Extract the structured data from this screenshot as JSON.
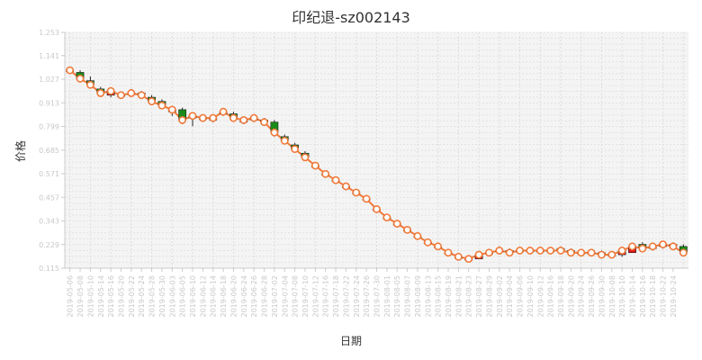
{
  "chart_data": {
    "type": "candlestick+line",
    "title": "印纪退-sz002143",
    "xlabel": "日期",
    "ylabel": "价格",
    "ylim": [
      0.115,
      1.253
    ],
    "y_ticks": [
      0.115,
      0.229,
      0.343,
      0.457,
      0.571,
      0.685,
      0.799,
      0.913,
      1.027,
      1.141,
      1.253
    ],
    "grid": true,
    "colors": {
      "up": "#e0161b",
      "down": "#1a8a1a",
      "line": "#f07a3a",
      "marker_fill": "#ffffff",
      "plot_bg": "#f4f4f4"
    },
    "x_ticks": [
      "2019-05-06",
      "2019-05-08",
      "2019-05-10",
      "2019-05-14",
      "2019-05-16",
      "2019-05-20",
      "2019-05-22",
      "2019-05-24",
      "2019-05-28",
      "2019-05-30",
      "2019-06-03",
      "2019-06-05",
      "2019-06-10",
      "2019-06-12",
      "2019-06-14",
      "2019-06-18",
      "2019-06-20",
      "2019-06-24",
      "2019-06-26",
      "2019-06-28",
      "2019-07-02",
      "2019-07-04",
      "2019-07-08",
      "2019-07-10",
      "2019-07-12",
      "2019-07-16",
      "2019-07-18",
      "2019-07-22",
      "2019-07-24",
      "2019-07-26",
      "2019-07-30",
      "2019-08-01",
      "2019-08-05",
      "2019-08-07",
      "2019-08-09",
      "2019-08-13",
      "2019-08-15",
      "2019-08-19",
      "2019-08-21",
      "2019-08-23",
      "2019-08-27",
      "2019-08-29",
      "2019-09-02",
      "2019-09-04",
      "2019-09-06",
      "2019-09-10",
      "2019-09-12",
      "2019-09-16",
      "2019-09-18",
      "2019-09-20",
      "2019-09-24",
      "2019-09-26",
      "2019-09-30",
      "2019-10-08",
      "2019-10-10",
      "2019-10-14",
      "2019-10-16",
      "2019-10-18",
      "2019-10-22",
      "2019-10-24"
    ],
    "candles": [
      {
        "o": 1.07,
        "h": 1.08,
        "l": 1.06,
        "c": 1.07
      },
      {
        "o": 1.06,
        "h": 1.07,
        "l": 1.02,
        "c": 1.03
      },
      {
        "o": 1.02,
        "h": 1.04,
        "l": 0.99,
        "c": 1.0
      },
      {
        "o": 0.98,
        "h": 0.99,
        "l": 0.95,
        "c": 0.96
      },
      {
        "o": 0.95,
        "h": 0.97,
        "l": 0.94,
        "c": 0.97
      },
      {
        "o": 0.95,
        "h": 0.96,
        "l": 0.94,
        "c": 0.95
      },
      {
        "o": 0.96,
        "h": 0.98,
        "l": 0.95,
        "c": 0.96
      },
      {
        "o": 0.96,
        "h": 0.97,
        "l": 0.94,
        "c": 0.95
      },
      {
        "o": 0.94,
        "h": 0.95,
        "l": 0.91,
        "c": 0.92
      },
      {
        "o": 0.92,
        "h": 0.93,
        "l": 0.89,
        "c": 0.9
      },
      {
        "o": 0.87,
        "h": 0.89,
        "l": 0.85,
        "c": 0.88
      },
      {
        "o": 0.88,
        "h": 0.89,
        "l": 0.81,
        "c": 0.83
      },
      {
        "o": 0.84,
        "h": 0.86,
        "l": 0.8,
        "c": 0.85
      },
      {
        "o": 0.84,
        "h": 0.85,
        "l": 0.83,
        "c": 0.84
      },
      {
        "o": 0.83,
        "h": 0.84,
        "l": 0.82,
        "c": 0.84
      },
      {
        "o": 0.86,
        "h": 0.87,
        "l": 0.85,
        "c": 0.87
      },
      {
        "o": 0.86,
        "h": 0.87,
        "l": 0.84,
        "c": 0.84
      },
      {
        "o": 0.82,
        "h": 0.83,
        "l": 0.81,
        "c": 0.83
      },
      {
        "o": 0.83,
        "h": 0.84,
        "l": 0.82,
        "c": 0.84
      },
      {
        "o": 0.83,
        "h": 0.84,
        "l": 0.81,
        "c": 0.82
      },
      {
        "o": 0.82,
        "h": 0.83,
        "l": 0.75,
        "c": 0.77
      },
      {
        "o": 0.75,
        "h": 0.76,
        "l": 0.73,
        "c": 0.73
      },
      {
        "o": 0.71,
        "h": 0.72,
        "l": 0.68,
        "c": 0.69
      },
      {
        "o": 0.67,
        "h": 0.68,
        "l": 0.64,
        "c": 0.65
      },
      {
        "o": 0.61,
        "h": 0.62,
        "l": 0.6,
        "c": 0.61
      },
      {
        "o": 0.57,
        "h": 0.58,
        "l": 0.56,
        "c": 0.57
      },
      {
        "o": 0.54,
        "h": 0.55,
        "l": 0.53,
        "c": 0.54
      },
      {
        "o": 0.51,
        "h": 0.52,
        "l": 0.5,
        "c": 0.51
      },
      {
        "o": 0.48,
        "h": 0.49,
        "l": 0.47,
        "c": 0.48
      },
      {
        "o": 0.45,
        "h": 0.46,
        "l": 0.44,
        "c": 0.45
      },
      {
        "o": 0.4,
        "h": 0.41,
        "l": 0.39,
        "c": 0.4
      },
      {
        "o": 0.36,
        "h": 0.37,
        "l": 0.35,
        "c": 0.36
      },
      {
        "o": 0.33,
        "h": 0.34,
        "l": 0.32,
        "c": 0.33
      },
      {
        "o": 0.3,
        "h": 0.31,
        "l": 0.29,
        "c": 0.3
      },
      {
        "o": 0.27,
        "h": 0.28,
        "l": 0.26,
        "c": 0.27
      },
      {
        "o": 0.24,
        "h": 0.25,
        "l": 0.23,
        "c": 0.24
      },
      {
        "o": 0.22,
        "h": 0.23,
        "l": 0.21,
        "c": 0.22
      },
      {
        "o": 0.19,
        "h": 0.2,
        "l": 0.18,
        "c": 0.19
      },
      {
        "o": 0.17,
        "h": 0.18,
        "l": 0.16,
        "c": 0.17
      },
      {
        "o": 0.16,
        "h": 0.17,
        "l": 0.15,
        "c": 0.16
      },
      {
        "o": 0.16,
        "h": 0.19,
        "l": 0.16,
        "c": 0.18
      },
      {
        "o": 0.19,
        "h": 0.2,
        "l": 0.18,
        "c": 0.19
      },
      {
        "o": 0.2,
        "h": 0.22,
        "l": 0.19,
        "c": 0.2
      },
      {
        "o": 0.2,
        "h": 0.21,
        "l": 0.18,
        "c": 0.19
      },
      {
        "o": 0.2,
        "h": 0.21,
        "l": 0.19,
        "c": 0.2
      },
      {
        "o": 0.2,
        "h": 0.21,
        "l": 0.19,
        "c": 0.2
      },
      {
        "o": 0.2,
        "h": 0.21,
        "l": 0.19,
        "c": 0.2
      },
      {
        "o": 0.2,
        "h": 0.21,
        "l": 0.19,
        "c": 0.2
      },
      {
        "o": 0.21,
        "h": 0.22,
        "l": 0.2,
        "c": 0.2
      },
      {
        "o": 0.2,
        "h": 0.21,
        "l": 0.19,
        "c": 0.19
      },
      {
        "o": 0.19,
        "h": 0.2,
        "l": 0.18,
        "c": 0.19
      },
      {
        "o": 0.19,
        "h": 0.2,
        "l": 0.18,
        "c": 0.19
      },
      {
        "o": 0.19,
        "h": 0.2,
        "l": 0.18,
        "c": 0.18
      },
      {
        "o": 0.18,
        "h": 0.19,
        "l": 0.17,
        "c": 0.18
      },
      {
        "o": 0.18,
        "h": 0.2,
        "l": 0.17,
        "c": 0.2
      },
      {
        "o": 0.19,
        "h": 0.23,
        "l": 0.19,
        "c": 0.22
      },
      {
        "o": 0.23,
        "h": 0.24,
        "l": 0.2,
        "c": 0.21
      },
      {
        "o": 0.21,
        "h": 0.23,
        "l": 0.2,
        "c": 0.22
      },
      {
        "o": 0.22,
        "h": 0.24,
        "l": 0.21,
        "c": 0.23
      },
      {
        "o": 0.23,
        "h": 0.24,
        "l": 0.21,
        "c": 0.22
      },
      {
        "o": 0.22,
        "h": 0.23,
        "l": 0.18,
        "c": 0.19
      }
    ]
  }
}
